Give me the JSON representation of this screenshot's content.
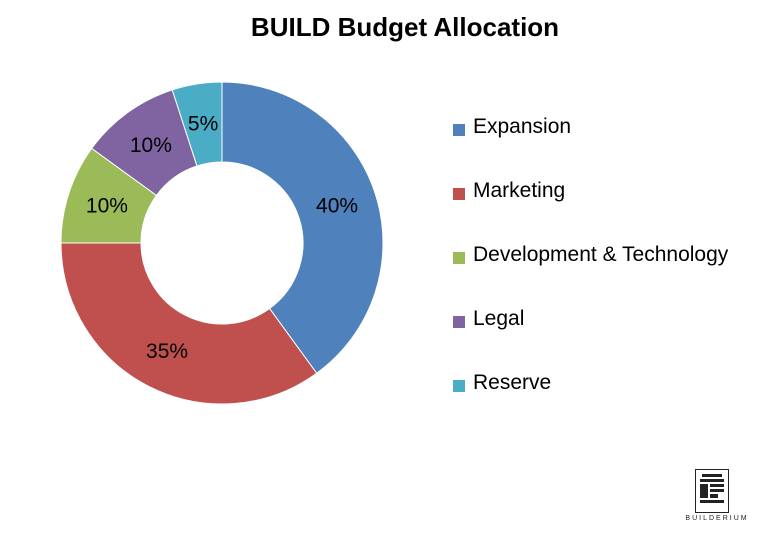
{
  "chart_data": {
    "type": "pie",
    "title": "BUILD Budget Allocation",
    "donut": true,
    "series": [
      {
        "name": "Expansion",
        "value": 40,
        "label": "40%",
        "color": "#4F81BD"
      },
      {
        "name": "Marketing",
        "value": 35,
        "label": "35%",
        "color": "#C0504D"
      },
      {
        "name": "Development & Technology",
        "value": 10,
        "label": "10%",
        "color": "#9BBB59"
      },
      {
        "name": "Legal",
        "value": 10,
        "label": "10%",
        "color": "#8064A2"
      },
      {
        "name": "Reserve",
        "value": 5,
        "label": "5%",
        "color": "#4BACC6"
      }
    ],
    "legend_position": "right"
  },
  "logo": {
    "text": "BUILDERIUM",
    "icon": "builderium-logo-icon"
  }
}
